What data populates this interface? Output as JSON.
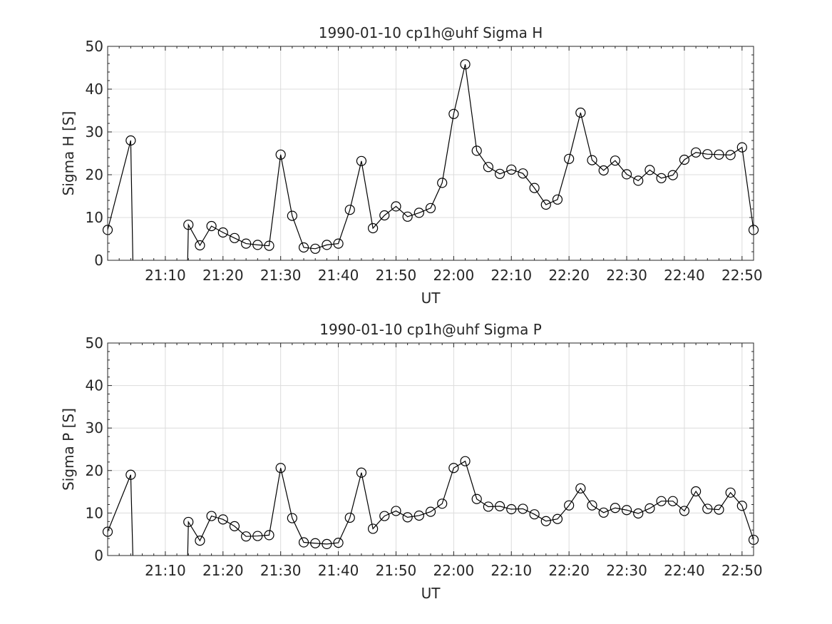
{
  "chart_data": [
    {
      "type": "line",
      "title": "1990-01-10  cp1h@uhf Sigma H",
      "xlabel": "UT",
      "ylabel": "Sigma H [S]",
      "ylim": [
        0,
        50
      ],
      "yticks": [
        "0",
        "10",
        "20",
        "30",
        "40",
        "50"
      ],
      "xlim": [
        "21:00",
        "22:52"
      ],
      "xtick_labels": [
        "21:10",
        "21:20",
        "21:30",
        "21:40",
        "21:50",
        "22:00",
        "22:10",
        "22:20",
        "22:30",
        "22:40",
        "22:50"
      ],
      "grid": true,
      "legend": "none",
      "series": [
        {
          "x": [
            "21:00",
            "21:04",
            "21:14",
            "21:16",
            "21:18",
            "21:20",
            "21:22",
            "21:24",
            "21:26",
            "21:28",
            "21:30",
            "21:32",
            "21:34",
            "21:36",
            "21:38",
            "21:40",
            "21:42",
            "21:44",
            "21:46",
            "21:48",
            "21:50",
            "21:52",
            "21:54",
            "21:56",
            "21:58",
            "22:00",
            "22:02",
            "22:04",
            "22:06",
            "22:08",
            "22:10",
            "22:12",
            "22:14",
            "22:16",
            "22:18",
            "22:20",
            "22:22",
            "22:24",
            "22:26",
            "22:28",
            "22:30",
            "22:32",
            "22:34",
            "22:36",
            "22:38",
            "22:40",
            "22:42",
            "22:44",
            "22:46",
            "22:48",
            "22:50",
            "22:52"
          ],
          "y": [
            7.1,
            28.0,
            8.3,
            3.5,
            8.0,
            6.5,
            5.2,
            3.9,
            3.6,
            3.4,
            24.7,
            10.4,
            3.0,
            2.7,
            3.6,
            3.9,
            11.8,
            23.2,
            7.5,
            10.5,
            12.6,
            10.2,
            11.1,
            12.2,
            18.1,
            34.2,
            45.8,
            25.6,
            21.8,
            20.2,
            21.2,
            20.3,
            16.9,
            13.0,
            14.2,
            23.7,
            34.5,
            23.4,
            21.0,
            23.3,
            20.1,
            18.6,
            21.1,
            19.2,
            19.9,
            23.5,
            25.2,
            24.8,
            24.7,
            24.6,
            26.4,
            7.1
          ],
          "gap_after": [
            1
          ]
        }
      ]
    },
    {
      "type": "line",
      "title": "1990-01-10  cp1h@uhf Sigma P",
      "xlabel": "UT",
      "ylabel": "Sigma P [S]",
      "ylim": [
        0,
        50
      ],
      "yticks": [
        "0",
        "10",
        "20",
        "30",
        "40",
        "50"
      ],
      "xlim": [
        "21:00",
        "22:52"
      ],
      "xtick_labels": [
        "21:10",
        "21:20",
        "21:30",
        "21:40",
        "21:50",
        "22:00",
        "22:10",
        "22:20",
        "22:30",
        "22:40",
        "22:50"
      ],
      "grid": true,
      "legend": "none",
      "series": [
        {
          "x": [
            "21:00",
            "21:04",
            "21:14",
            "21:16",
            "21:18",
            "21:20",
            "21:22",
            "21:24",
            "21:26",
            "21:28",
            "21:30",
            "21:32",
            "21:34",
            "21:36",
            "21:38",
            "21:40",
            "21:42",
            "21:44",
            "21:46",
            "21:48",
            "21:50",
            "21:52",
            "21:54",
            "21:56",
            "21:58",
            "22:00",
            "22:02",
            "22:04",
            "22:06",
            "22:08",
            "22:10",
            "22:12",
            "22:14",
            "22:16",
            "22:18",
            "22:20",
            "22:22",
            "22:24",
            "22:26",
            "22:28",
            "22:30",
            "22:32",
            "22:34",
            "22:36",
            "22:38",
            "22:40",
            "22:42",
            "22:44",
            "22:46",
            "22:48",
            "22:50",
            "22:52"
          ],
          "y": [
            5.6,
            19.0,
            7.9,
            3.5,
            9.3,
            8.5,
            6.9,
            4.5,
            4.6,
            4.8,
            20.6,
            8.8,
            3.1,
            2.9,
            2.7,
            3.0,
            8.9,
            19.5,
            6.3,
            9.3,
            10.5,
            9.0,
            9.4,
            10.3,
            12.2,
            20.6,
            22.2,
            13.3,
            11.5,
            11.6,
            10.9,
            11.0,
            9.7,
            8.1,
            8.6,
            11.8,
            15.8,
            11.8,
            10.1,
            11.2,
            10.7,
            9.9,
            11.1,
            12.8,
            12.8,
            10.5,
            15.1,
            11.0,
            10.8,
            14.8,
            11.7,
            3.7
          ],
          "gap_after": [
            1
          ]
        }
      ]
    }
  ]
}
